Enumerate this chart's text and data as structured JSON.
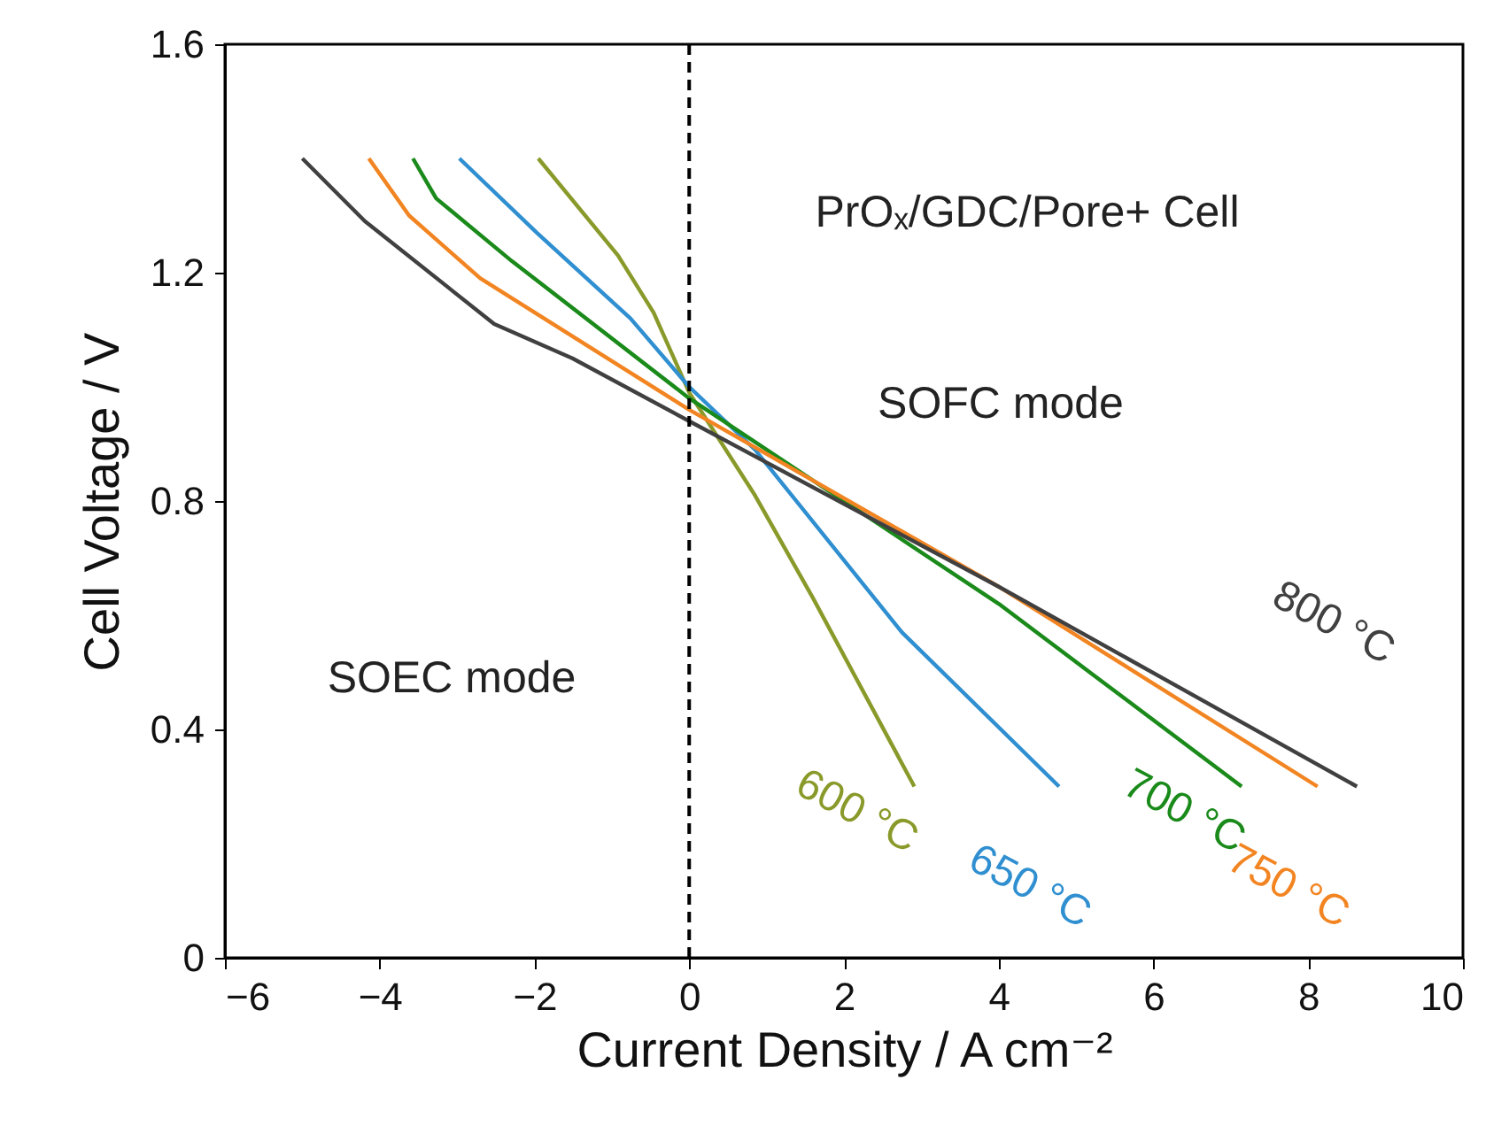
{
  "chart_data": {
    "type": "line",
    "xlabel": "Current Density / A cm⁻²",
    "ylabel": "Cell Voltage / V",
    "xlim": [
      -6,
      10
    ],
    "ylim": [
      0,
      1.6
    ],
    "xticks": [
      -6,
      -4,
      -2,
      0,
      2,
      4,
      6,
      8,
      10
    ],
    "yticks": [
      0,
      0.4,
      0.8,
      1.2,
      1.6
    ],
    "series": [
      {
        "name": "600 °C",
        "color": "#8a9a2a",
        "x": [
          -1.95,
          -0.92,
          -0.46,
          0,
          0.85,
          1.6,
          2.91
        ],
        "values": [
          1.4,
          1.23,
          1.13,
          0.99,
          0.81,
          0.63,
          0.3
        ]
      },
      {
        "name": "650 °C",
        "color": "#2f8fd0",
        "x": [
          -2.97,
          -1.97,
          -0.76,
          0,
          0.85,
          2.75,
          4.78
        ],
        "values": [
          1.4,
          1.27,
          1.12,
          1.0,
          0.89,
          0.57,
          0.3
        ]
      },
      {
        "name": "700 °C",
        "color": "#1a8a1a",
        "x": [
          -3.57,
          -3.27,
          -2.29,
          0,
          4.0,
          7.14
        ],
        "values": [
          1.4,
          1.33,
          1.22,
          0.98,
          0.62,
          0.3
        ]
      },
      {
        "name": "750 °C",
        "color": "#f28522",
        "x": [
          -4.14,
          -3.62,
          -2.7,
          0,
          4.0,
          8.12
        ],
        "values": [
          1.4,
          1.3,
          1.19,
          0.96,
          0.65,
          0.3
        ]
      },
      {
        "name": "800 °C",
        "color": "#404040",
        "x": [
          -5.0,
          -4.19,
          -2.52,
          -1.51,
          0,
          4.0,
          8.63
        ],
        "values": [
          1.4,
          1.29,
          1.11,
          1.05,
          0.94,
          0.65,
          0.3
        ]
      }
    ],
    "ref_lines": [
      {
        "axis": "x",
        "value": 0,
        "color": "#000000",
        "line_style": "dashed"
      }
    ],
    "annotations": [
      "PrOₓ/GDC/Pore+ Cell",
      "SOFC mode",
      "SOEC mode"
    ]
  }
}
